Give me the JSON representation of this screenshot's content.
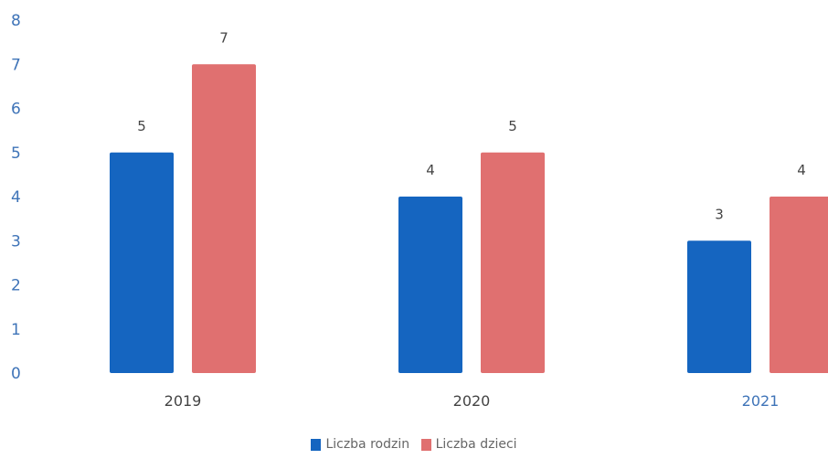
{
  "chart_data": {
    "type": "bar",
    "categories": [
      "2019",
      "2020",
      "2021"
    ],
    "series": [
      {
        "name": "Liczba rodzin",
        "values": [
          5,
          4,
          3
        ],
        "color": "#1565c0"
      },
      {
        "name": "Liczba dzieci",
        "values": [
          7,
          5,
          4
        ],
        "color": "#e07070"
      }
    ],
    "yticks": [
      "0",
      "1",
      "2",
      "3",
      "4",
      "5",
      "6",
      "7",
      "8"
    ],
    "ylim": [
      0,
      8
    ],
    "grid": false,
    "legend_position": "bottom",
    "tick_color": "#3f74b8"
  }
}
